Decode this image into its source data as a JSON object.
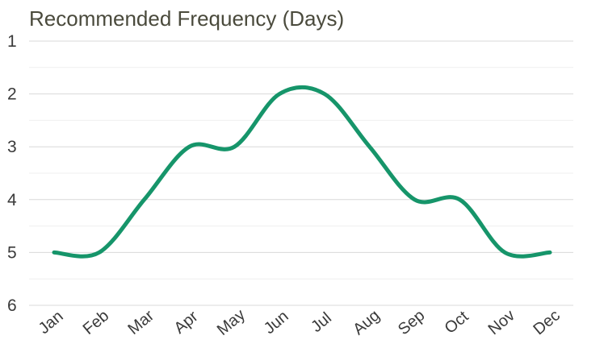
{
  "chart_data": {
    "type": "line",
    "title": "Recommended Frequency (Days)",
    "categories": [
      "Jan",
      "Feb",
      "Mar",
      "Apr",
      "May",
      "Jun",
      "Jul",
      "Aug",
      "Sep",
      "Oct",
      "Nov",
      "Dec"
    ],
    "series": [
      {
        "values": [
          5,
          5,
          4,
          3,
          3,
          2,
          2,
          3,
          4,
          4,
          5,
          5
        ],
        "color": "#16956a"
      }
    ],
    "y_ticks": [
      "1",
      "2",
      "3",
      "4",
      "5",
      "6"
    ],
    "ylim": [
      1,
      6
    ],
    "y_reversed": true,
    "grid": true,
    "smooth": true
  }
}
